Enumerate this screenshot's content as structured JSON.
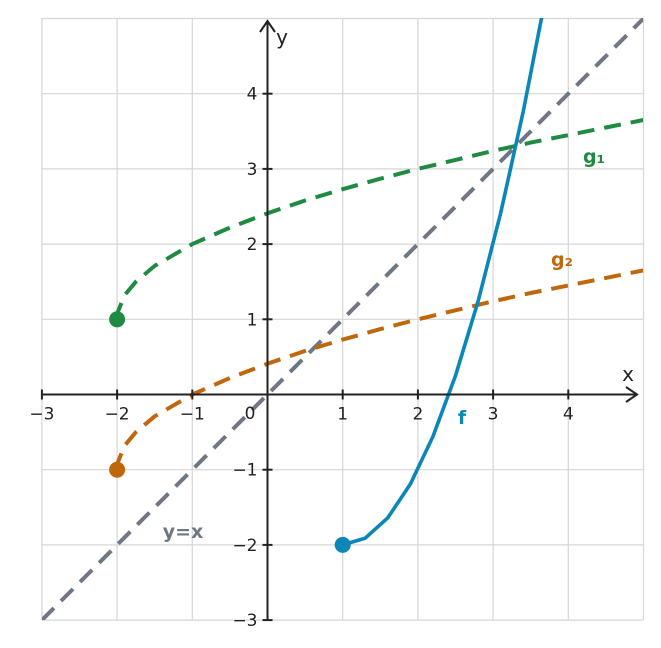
{
  "chart_data": {
    "type": "line",
    "title": "",
    "xlabel": "x",
    "ylabel": "y",
    "xlim": [
      -3,
      5
    ],
    "ylim": [
      -3,
      5
    ],
    "grid": true,
    "origin_label": "0",
    "x_ticks": [
      {
        "value": -3,
        "label": "−3"
      },
      {
        "value": -2,
        "label": "−2"
      },
      {
        "value": -1,
        "label": "−1"
      },
      {
        "value": 1,
        "label": "1"
      },
      {
        "value": 2,
        "label": "2"
      },
      {
        "value": 3,
        "label": "3"
      },
      {
        "value": 4,
        "label": "4"
      }
    ],
    "y_ticks": [
      {
        "value": -3,
        "label": "−3"
      },
      {
        "value": -2,
        "label": "−2"
      },
      {
        "value": -1,
        "label": "−1"
      },
      {
        "value": 1,
        "label": "1"
      },
      {
        "value": 2,
        "label": "2"
      },
      {
        "value": 3,
        "label": "3"
      },
      {
        "value": 4,
        "label": "4"
      }
    ],
    "series": [
      {
        "id": "f",
        "name": "f",
        "color": "#0a87b8",
        "dashed": false,
        "x": [
          1,
          1.3,
          1.6,
          1.9,
          2.2,
          2.5,
          2.8,
          3.1,
          3.4,
          3.7
        ],
        "y": [
          -2,
          -1.91,
          -1.64,
          -1.19,
          -0.56,
          0.25,
          1.24,
          2.41,
          3.76,
          5.29
        ],
        "endpoint": [
          1,
          -2
        ]
      },
      {
        "id": "g1",
        "name": "g₁",
        "color": "#1f8a42",
        "dashed": true,
        "x": [
          -2,
          -1.99,
          -1.9,
          -1.75,
          -1.5,
          -1,
          -0.5,
          0,
          0.5,
          1,
          1.5,
          2,
          2.5,
          3,
          3.5,
          4,
          4.5,
          5
        ],
        "y": [
          1,
          1.1,
          1.32,
          1.5,
          1.71,
          2,
          2.22,
          2.41,
          2.58,
          2.73,
          2.87,
          3,
          3.12,
          3.24,
          3.35,
          3.45,
          3.55,
          3.65
        ],
        "endpoint": [
          -2,
          1
        ]
      },
      {
        "id": "g2",
        "name": "g₂",
        "color": "#c0670c",
        "dashed": true,
        "x": [
          -2,
          -1.99,
          -1.9,
          -1.75,
          -1.5,
          -1,
          -0.5,
          0,
          0.5,
          1,
          1.5,
          2,
          2.5,
          3,
          3.5,
          4,
          4.5,
          5
        ],
        "y": [
          -1,
          -0.9,
          -0.68,
          -0.5,
          -0.29,
          0,
          0.22,
          0.41,
          0.58,
          0.73,
          0.87,
          1,
          1.12,
          1.24,
          1.35,
          1.45,
          1.55,
          1.65
        ],
        "endpoint": [
          -2,
          -1
        ]
      },
      {
        "id": "identity",
        "name": "y=x",
        "color": "#6f7782",
        "dashed": true,
        "x": [
          -3,
          5
        ],
        "y": [
          -3,
          5
        ]
      }
    ]
  }
}
